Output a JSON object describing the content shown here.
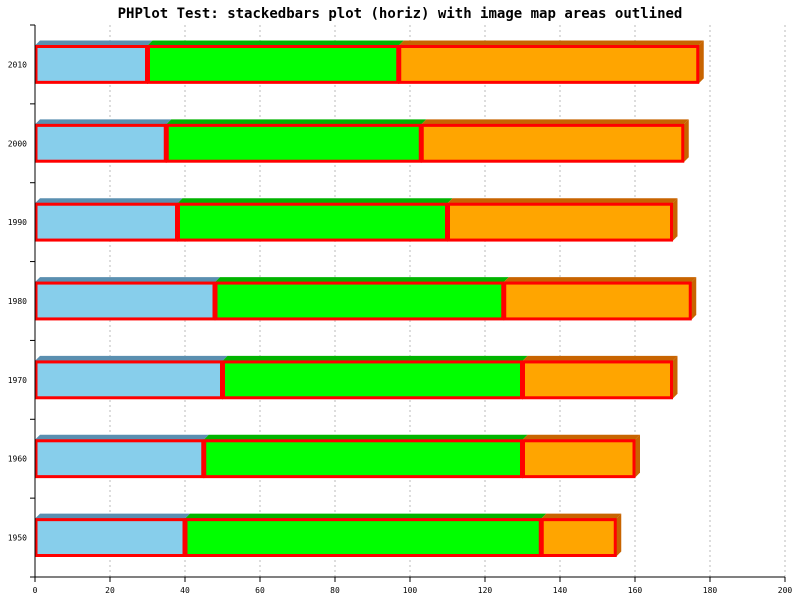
{
  "chart_data": {
    "type": "bar",
    "orientation": "horizontal",
    "stacked": true,
    "title": "PHPlot Test: stackedbars plot (horiz) with image map areas outlined",
    "categories": [
      "1950",
      "1960",
      "1970",
      "1980",
      "1990",
      "2000",
      "2010"
    ],
    "series": [
      {
        "color": "#87ceeb",
        "shade": "#5a8fb0",
        "values": [
          40,
          45,
          50,
          48,
          38,
          35,
          30
        ]
      },
      {
        "color": "#00ff00",
        "shade": "#00b400",
        "values": [
          95,
          85,
          80,
          77,
          72,
          68,
          67
        ]
      },
      {
        "color": "#ffa500",
        "shade": "#c86400",
        "values": [
          20,
          30,
          40,
          50,
          60,
          70,
          80
        ]
      }
    ],
    "xlim": [
      0,
      200
    ],
    "x_ticks": [
      0,
      20,
      40,
      60,
      80,
      100,
      120,
      140,
      160,
      180,
      200
    ],
    "grid": {
      "vertical": true,
      "horizontal": false
    },
    "outline_color": "#ff0000"
  }
}
